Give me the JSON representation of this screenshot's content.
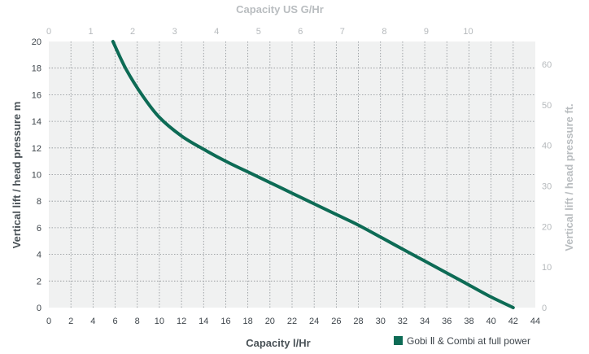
{
  "chart_data": {
    "type": "line",
    "xlabel": "Capacity l/Hr",
    "ylabel": "Vertical lift / head pressure m",
    "x2label": "Capacity US G/Hr",
    "y2label": "Vertical lift / head pressure ft.",
    "xlim": [
      0,
      44
    ],
    "ylim": [
      0,
      20
    ],
    "x2lim": [
      0,
      11.6
    ],
    "y2lim": [
      0,
      65.6
    ],
    "xticks": [
      "0",
      "2",
      "4",
      "6",
      "8",
      "10",
      "12",
      "14",
      "16",
      "18",
      "20",
      "22",
      "24",
      "26",
      "28",
      "30",
      "32",
      "34",
      "36",
      "38",
      "40",
      "42",
      "44"
    ],
    "yticks": [
      "0",
      "2",
      "4",
      "6",
      "8",
      "10",
      "12",
      "14",
      "16",
      "18",
      "20"
    ],
    "x2ticks": [
      "0",
      "1",
      "2",
      "3",
      "4",
      "5",
      "6",
      "7",
      "8",
      "9",
      "10"
    ],
    "y2ticks": [
      "0",
      "10",
      "20",
      "30",
      "40",
      "50",
      "60"
    ],
    "grid": true,
    "legend_position": "bottom-right",
    "series": [
      {
        "name": "Gobi Ⅱ & Combi at full power",
        "color": "#0d6b55",
        "x": [
          5.8,
          7,
          8.5,
          10,
          12,
          14,
          16,
          18,
          20,
          22,
          24,
          26,
          28,
          30,
          32,
          34,
          36,
          38,
          40,
          42
        ],
        "y": [
          20,
          17.9,
          15.9,
          14.3,
          12.9,
          11.9,
          11.0,
          10.2,
          9.4,
          8.6,
          7.8,
          7.0,
          6.2,
          5.3,
          4.4,
          3.5,
          2.6,
          1.7,
          0.8,
          0
        ]
      }
    ]
  }
}
